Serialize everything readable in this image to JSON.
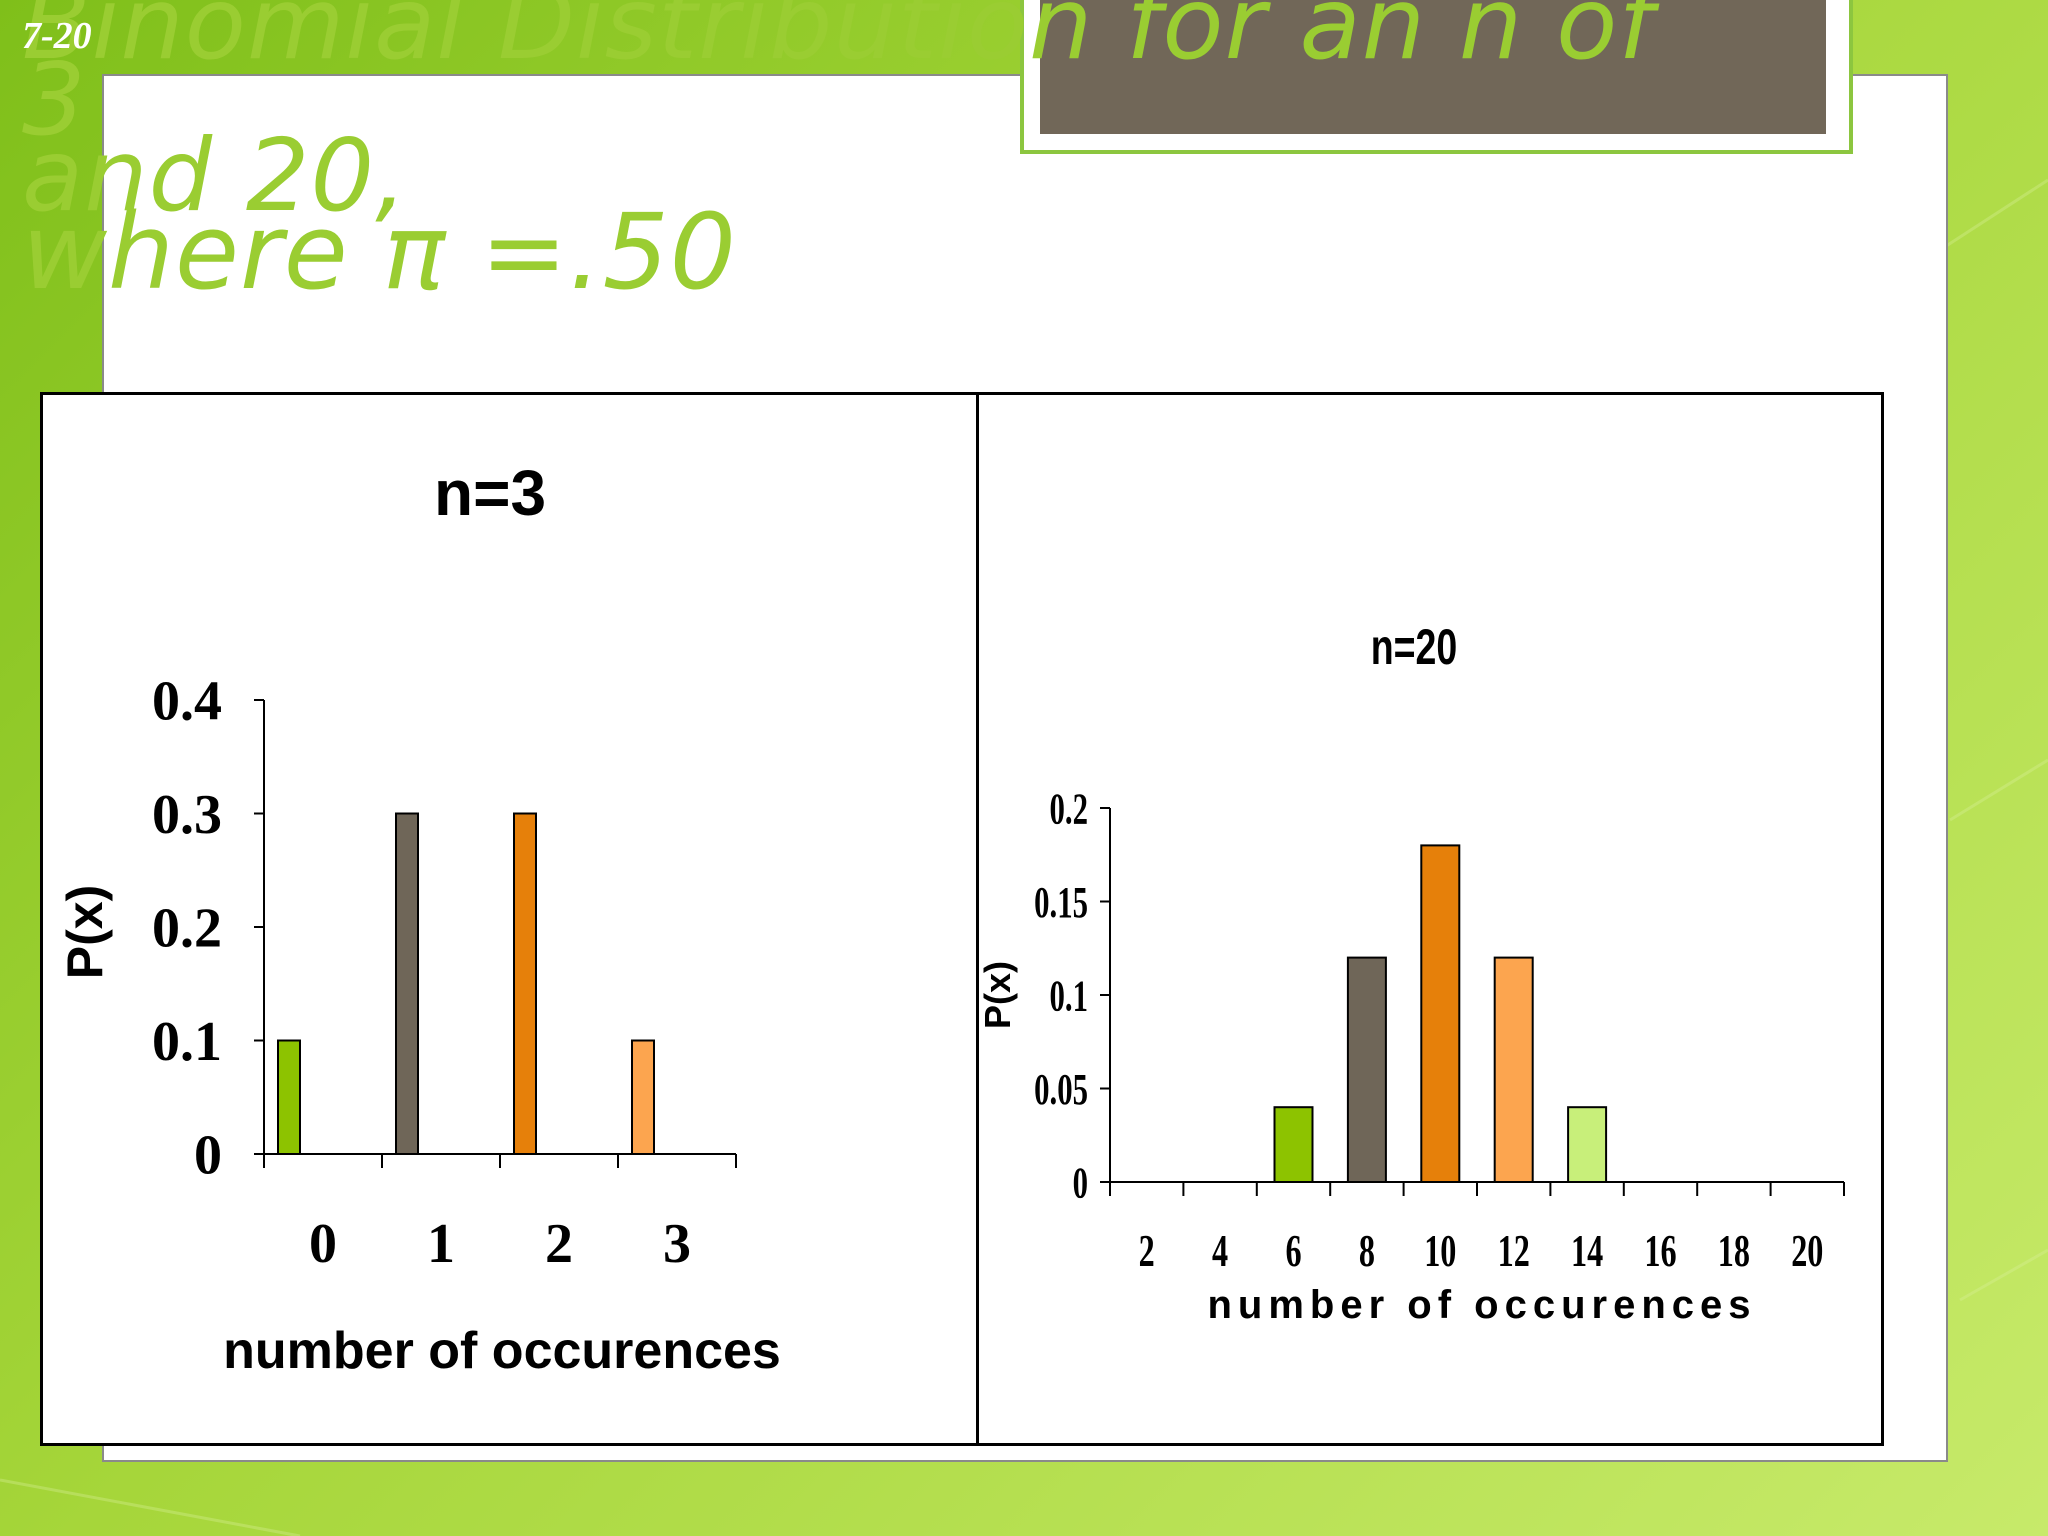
{
  "slide": {
    "number": "7-20",
    "title_line1": "Binomial Distribution for an n of 3",
    "title_line2": "and 20,",
    "title_line3": "where π =.50"
  },
  "colors": {
    "green": "#8dc300",
    "gray": "#6f6658",
    "orange": "#e6800a",
    "light_orange": "#fca54f",
    "light_green": "#c8ef7a",
    "title": "#9acd32"
  },
  "chart_data": [
    {
      "type": "bar",
      "title": "n=3",
      "xlabel": "number of occurences",
      "ylabel": "P(x)",
      "categories": [
        "0",
        "1",
        "2",
        "3"
      ],
      "values": [
        0.1,
        0.3,
        0.3,
        0.1
      ],
      "bar_colors": [
        "#8dc300",
        "#6f6658",
        "#e6800a",
        "#fca54f"
      ],
      "ylim": [
        0,
        0.4
      ],
      "yticks": [
        "0",
        "0.1",
        "0.2",
        "0.3",
        "0.4"
      ],
      "grid": false,
      "legend": "none"
    },
    {
      "type": "bar",
      "title": "n=20",
      "xlabel": "number of occurences",
      "ylabel": "P(x)",
      "categories": [
        "2",
        "4",
        "6",
        "8",
        "10",
        "12",
        "14",
        "16",
        "18",
        "20"
      ],
      "values": [
        0,
        0,
        0.04,
        0.12,
        0.18,
        0.12,
        0.04,
        0,
        0,
        0
      ],
      "bar_colors": [
        "#8dc300",
        "#8dc300",
        "#8dc300",
        "#6f6658",
        "#e6800a",
        "#fca54f",
        "#c8ef7a",
        "#c8ef7a",
        "#c8ef7a",
        "#c8ef7a"
      ],
      "ylim": [
        0,
        0.2
      ],
      "yticks": [
        "0",
        "0.05",
        "0.1",
        "0.15",
        "0.2"
      ],
      "grid": false,
      "legend": "none"
    }
  ]
}
